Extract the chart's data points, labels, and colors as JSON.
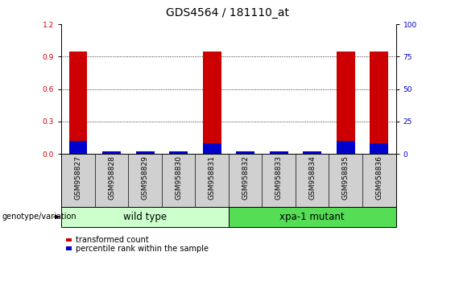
{
  "title": "GDS4564 / 181110_at",
  "samples": [
    "GSM958827",
    "GSM958828",
    "GSM958829",
    "GSM958830",
    "GSM958831",
    "GSM958832",
    "GSM958833",
    "GSM958834",
    "GSM958835",
    "GSM958836"
  ],
  "red_values": [
    0.95,
    0.0,
    0.0,
    0.0,
    0.95,
    0.0,
    0.0,
    0.0,
    0.95,
    0.95
  ],
  "blue_values": [
    0.12,
    0.02,
    0.02,
    0.02,
    0.1,
    0.02,
    0.02,
    0.02,
    0.12,
    0.1
  ],
  "ylim_left": [
    0,
    1.2
  ],
  "ylim_right": [
    0,
    100
  ],
  "yticks_left": [
    0,
    0.3,
    0.6,
    0.9,
    1.2
  ],
  "yticks_right": [
    0,
    25,
    50,
    75,
    100
  ],
  "group1_label": "wild type",
  "group2_label": "xpa-1 mutant",
  "group1_color": "#ccffcc",
  "group2_color": "#55dd55",
  "genotype_label": "genotype/variation",
  "legend1_label": "transformed count",
  "legend2_label": "percentile rank within the sample",
  "red_color": "#cc0000",
  "blue_color": "#0000cc",
  "bar_width": 0.55,
  "title_fontsize": 10,
  "tick_label_fontsize": 6.5,
  "group_label_fontsize": 8.5,
  "legend_fontsize": 7,
  "genotype_fontsize": 7
}
